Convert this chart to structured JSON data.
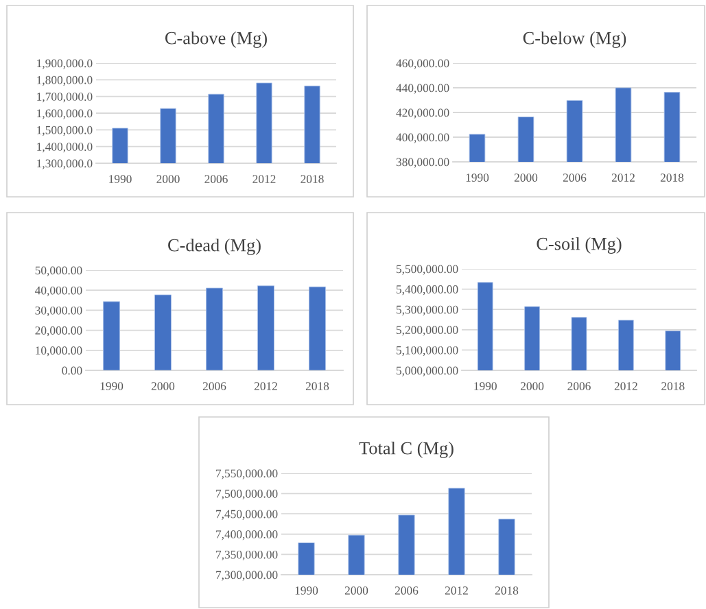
{
  "chart_data": [
    {
      "type": "bar",
      "title": "C-above (Mg)",
      "categories": [
        "1990",
        "2000",
        "2006",
        "2012",
        "2018"
      ],
      "values": [
        1510000,
        1628000,
        1714000,
        1781000,
        1763000
      ],
      "color": "#4472c4",
      "ylim": [
        1300000,
        1900000
      ],
      "yticks": [
        {
          "value": 1300000,
          "label": "1,300,000.0"
        },
        {
          "value": 1400000,
          "label": "1,400,000.0"
        },
        {
          "value": 1500000,
          "label": "1,500,000.0"
        },
        {
          "value": 1600000,
          "label": "1,600,000.0"
        },
        {
          "value": 1700000,
          "label": "1,700,000.0"
        },
        {
          "value": 1800000,
          "label": "1,800,000.0"
        },
        {
          "value": 1900000,
          "label": "1,900,000.0"
        }
      ],
      "grid": "y"
    },
    {
      "type": "bar",
      "title": "C-below (Mg)",
      "categories": [
        "1990",
        "2000",
        "2006",
        "2012",
        "2018"
      ],
      "values": [
        402300,
        416400,
        429700,
        440000,
        436400
      ],
      "color": "#4472c4",
      "ylim": [
        380000,
        460000
      ],
      "yticks": [
        {
          "value": 380000,
          "label": "380,000.00"
        },
        {
          "value": 400000,
          "label": "400,000.00"
        },
        {
          "value": 420000,
          "label": "420,000.00"
        },
        {
          "value": 440000,
          "label": "440,000.00"
        },
        {
          "value": 460000,
          "label": "460,000.00"
        }
      ],
      "grid": "y"
    },
    {
      "type": "bar",
      "title": "C-dead (Mg)",
      "categories": [
        "1990",
        "2000",
        "2006",
        "2012",
        "2018"
      ],
      "values": [
        34300,
        37700,
        41100,
        42200,
        41700
      ],
      "color": "#4472c4",
      "ylim": [
        0,
        50000
      ],
      "yticks": [
        {
          "value": 0,
          "label": "0.00"
        },
        {
          "value": 10000,
          "label": "10,000.00"
        },
        {
          "value": 20000,
          "label": "20,000.00"
        },
        {
          "value": 30000,
          "label": "30,000.00"
        },
        {
          "value": 40000,
          "label": "40,000.00"
        },
        {
          "value": 50000,
          "label": "50,000.00"
        }
      ],
      "grid": "y"
    },
    {
      "type": "bar",
      "title": "C-soil (Mg)",
      "categories": [
        "1990",
        "2000",
        "2006",
        "2012",
        "2018"
      ],
      "values": [
        5433000,
        5314000,
        5261000,
        5247000,
        5194000
      ],
      "color": "#4472c4",
      "ylim": [
        5000000,
        5500000
      ],
      "yticks": [
        {
          "value": 5000000,
          "label": "5,000,000.00"
        },
        {
          "value": 5100000,
          "label": "5,100,000.00"
        },
        {
          "value": 5200000,
          "label": "5,200,000.00"
        },
        {
          "value": 5300000,
          "label": "5,300,000.00"
        },
        {
          "value": 5400000,
          "label": "5,400,000.00"
        },
        {
          "value": 5500000,
          "label": "5,500,000.00"
        }
      ],
      "grid": "y"
    },
    {
      "type": "bar",
      "title": "Total C (Mg)",
      "categories": [
        "1990",
        "2000",
        "2006",
        "2012",
        "2018"
      ],
      "values": [
        7378500,
        7397500,
        7447000,
        7513000,
        7437000
      ],
      "color": "#4472c4",
      "ylim": [
        7300000,
        7550000
      ],
      "yticks": [
        {
          "value": 7300000,
          "label": "7,300,000.00"
        },
        {
          "value": 7350000,
          "label": "7,350,000.00"
        },
        {
          "value": 7400000,
          "label": "7,400,000.00"
        },
        {
          "value": 7450000,
          "label": "7,450,000.00"
        },
        {
          "value": 7500000,
          "label": "7,500,000.00"
        },
        {
          "value": 7550000,
          "label": "7,550,000.00"
        }
      ],
      "grid": "y"
    }
  ]
}
